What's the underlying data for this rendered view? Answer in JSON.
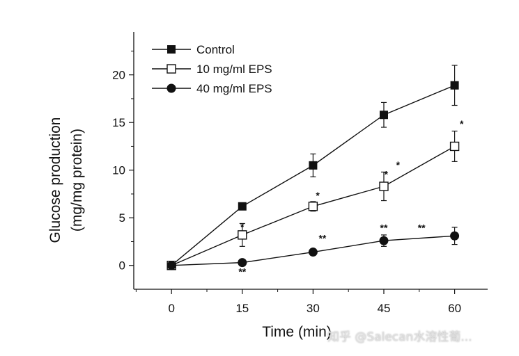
{
  "chart_data": {
    "type": "line",
    "title": "",
    "xlabel": "Time (min)",
    "ylabel": "Glucose production",
    "ylabel_units": "(mg/mg protein)",
    "x": [
      0,
      15,
      30,
      45,
      60
    ],
    "xticks": [
      "0",
      "15",
      "30",
      "45",
      "60"
    ],
    "yticks": [
      "0",
      "5",
      "10",
      "15",
      "20"
    ],
    "xlim": [
      -8,
      67
    ],
    "ylim": [
      -2.5,
      24.5
    ],
    "legend_position": "top-left",
    "series": [
      {
        "name": "Control",
        "marker": "filled-square",
        "values": [
          0,
          6.2,
          10.5,
          15.8,
          18.9
        ],
        "errors": [
          0.2,
          0.25,
          1.2,
          1.3,
          2.1
        ]
      },
      {
        "name": "10 mg/ml EPS",
        "marker": "open-square",
        "values": [
          0,
          3.2,
          6.2,
          8.3,
          12.5
        ],
        "errors": [
          0.2,
          1.2,
          0.5,
          1.5,
          1.6
        ]
      },
      {
        "name": "40 mg/ml EPS",
        "marker": "filled-circle",
        "values": [
          0,
          0.3,
          1.4,
          2.6,
          3.1
        ],
        "errors": [
          0.15,
          0.2,
          0.2,
          0.6,
          0.9
        ]
      }
    ],
    "annotations": [
      {
        "text": "*",
        "x": 15,
        "y": 3.7
      },
      {
        "text": "**",
        "x": 15,
        "y": -1.0
      },
      {
        "text": "*",
        "x": 31,
        "y": 7.0
      },
      {
        "text": "**",
        "x": 32,
        "y": 2.5
      },
      {
        "text": "*",
        "x": 45.5,
        "y": 9.2
      },
      {
        "text": "*",
        "x": 48,
        "y": 10.2
      },
      {
        "text": "**",
        "x": 45,
        "y": 3.6
      },
      {
        "text": "**",
        "x": 53,
        "y": 3.6
      },
      {
        "text": "*",
        "x": 61.5,
        "y": 14.5
      }
    ]
  },
  "watermark": {
    "text": "知乎 @Salecan水溶性葡..."
  }
}
